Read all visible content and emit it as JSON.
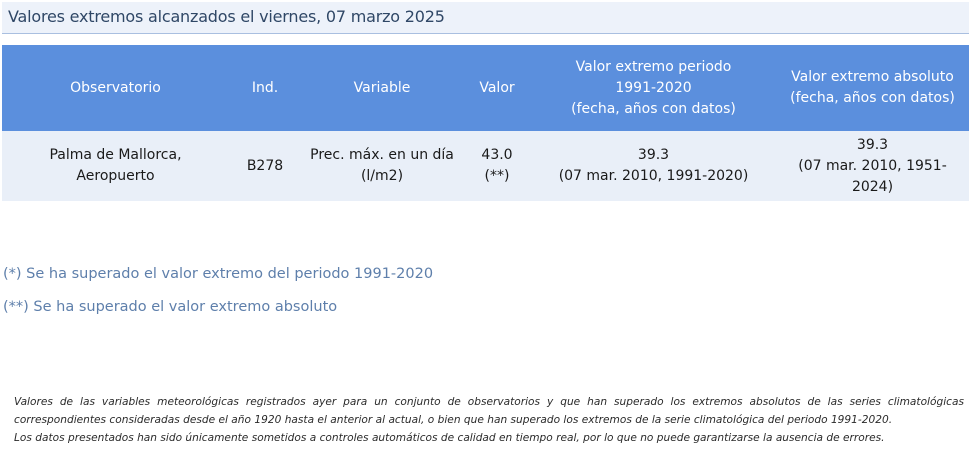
{
  "title": "Valores extremos alcanzados el viernes, 07 marzo 2025",
  "table": {
    "headers": {
      "observatorio": "Observatorio",
      "ind": "Ind.",
      "variable": "Variable",
      "valor": "Valor",
      "extremo_periodo_line1": "Valor extremo periodo 1991-2020",
      "extremo_periodo_line2": "(fecha, años con datos)",
      "extremo_absoluto_line1": "Valor extremo absoluto",
      "extremo_absoluto_line2": "(fecha, años con datos)"
    },
    "rows": [
      {
        "observatorio": "Palma de Mallorca, Aeropuerto",
        "ind": "B278",
        "variable": "Prec. máx. en un día (l/m2)",
        "valor": "43.0",
        "valor_marca": "(**)",
        "extremo_periodo_valor": "39.3",
        "extremo_periodo_detalle": "(07 mar. 2010, 1991-2020)",
        "extremo_absoluto_valor": "39.3",
        "extremo_absoluto_detalle": "(07 mar. 2010, 1951-2024)"
      }
    ]
  },
  "notes": {
    "periodo": "(*) Se ha superado el valor extremo del periodo 1991-2020",
    "absoluto": "(**) Se ha superado el valor extremo absoluto"
  },
  "footer": {
    "line1": "Valores de las variables meteorológicas registrados ayer para un conjunto de observatorios y que han superado los extremos absolutos de las series climatológicas",
    "line2": "correspondientes consideradas desde el año 1920 hasta el anterior al actual, o bien que han superado los extremos de la serie climatológica del periodo 1991-2020.",
    "line3": "Los datos presentados han sido únicamente sometidos a controles automáticos de calidad en tiempo real, por lo que no puede garantizarse la ausencia de errores."
  },
  "colors": {
    "header_bg": "#5b8fdd",
    "row_bg": "#e9eff8",
    "title_bg": "#edf2fa",
    "note_text": "#5e7fab"
  }
}
